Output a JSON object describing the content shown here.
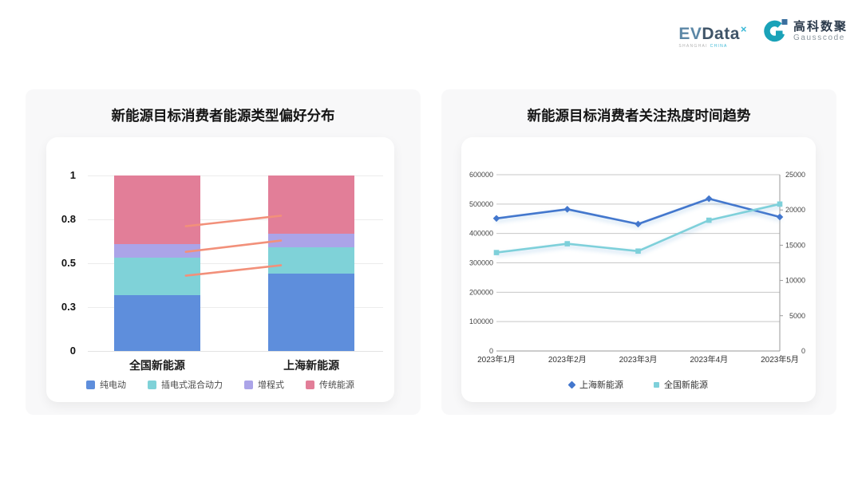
{
  "header": {
    "evdata_logo": {
      "ev": "EV",
      "data": "Data",
      "sup": "×",
      "tagline_1": "SHANGHAI",
      "tagline_2": "CHINA"
    },
    "gausscode_logo": {
      "cn": "高科数聚",
      "en": "Gausscode"
    }
  },
  "colors": {
    "pure_electric_blue": "#5e8edc",
    "phev_teal": "#7fd2d8",
    "erev_purple": "#aba4e8",
    "traditional_pink": "#e27e98",
    "trend_line_salmon": "#f2907a",
    "shanghai_line_blue": "#4377cd",
    "national_line_cyan": "#7ed0da",
    "card_bg": "#f8f8f9"
  },
  "chart_data": [
    {
      "type": "bar",
      "subtype": "stacked_percent",
      "title": "新能源目标消费者能源类型偏好分布",
      "categories": [
        "全国新能源",
        "上海新能源"
      ],
      "series": [
        {
          "name": "纯电动",
          "color": "#5e8edc",
          "values": [
            0.32,
            0.44
          ]
        },
        {
          "name": "插电式混合动力",
          "color": "#7fd2d8",
          "values": [
            0.21,
            0.15
          ]
        },
        {
          "name": "增程式",
          "color": "#aba4e8",
          "values": [
            0.08,
            0.08
          ]
        },
        {
          "name": "传统能源",
          "color": "#e27e98",
          "values": [
            0.39,
            0.33
          ]
        }
      ],
      "ylim": [
        0,
        1
      ],
      "grid": true,
      "legend_position": "bottom",
      "y_axis": {
        "ticks": [
          {
            "label": "0",
            "pos": 0.0
          },
          {
            "label": "0.3",
            "pos": 0.25
          },
          {
            "label": "0.5",
            "pos": 0.5
          },
          {
            "label": "0.8",
            "pos": 0.75
          },
          {
            "label": "1",
            "pos": 1.0
          }
        ]
      },
      "trend_line_color": "#f2907a",
      "trend_lines": [
        {
          "from": [
            0.332,
            0.711
          ],
          "to": [
            0.654,
            0.771
          ]
        },
        {
          "from": [
            0.332,
            0.565
          ],
          "to": [
            0.654,
            0.629
          ]
        },
        {
          "from": [
            0.332,
            0.429
          ],
          "to": [
            0.654,
            0.488
          ]
        }
      ]
    },
    {
      "type": "line",
      "title": "新能源目标消费者关注热度时间趋势",
      "x": [
        "2023年1月",
        "2023年2月",
        "2023年3月",
        "2023年4月",
        "2023年5月"
      ],
      "series": [
        {
          "name": "上海新能源",
          "color": "#4377cd",
          "axis": "right",
          "marker": "diamond",
          "values": [
            18800,
            20100,
            18000,
            21600,
            19000
          ]
        },
        {
          "name": "全国新能源",
          "color": "#7ed0da",
          "axis": "left",
          "marker": "square",
          "values": [
            335000,
            365000,
            340000,
            445000,
            500000
          ]
        }
      ],
      "left_axis": {
        "max": 600000,
        "ticks": [
          0,
          100000,
          200000,
          300000,
          400000,
          500000,
          600000
        ]
      },
      "right_axis": {
        "max": 25000,
        "ticks": [
          0,
          5000,
          10000,
          15000,
          20000,
          25000
        ]
      },
      "grid": true,
      "legend_position": "bottom"
    }
  ]
}
